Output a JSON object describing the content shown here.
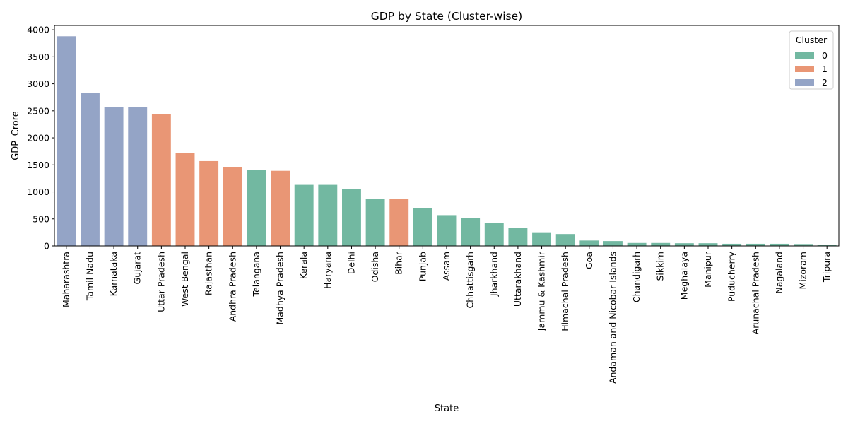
{
  "chart_data": {
    "type": "bar",
    "title": "GDP by State (Cluster-wise)",
    "xlabel": "State",
    "ylabel": "GDP_Crore",
    "ylim": [
      0,
      4080
    ],
    "yticks": [
      0,
      500,
      1000,
      1500,
      2000,
      2500,
      3000,
      3500,
      4000
    ],
    "grid": false,
    "legend": {
      "title": "Cluster",
      "position": "top-right",
      "entries": [
        {
          "label": "0",
          "color": "#72b8a1"
        },
        {
          "label": "1",
          "color": "#e99675"
        },
        {
          "label": "2",
          "color": "#94a4c6"
        }
      ]
    },
    "categories": [
      "Maharashtra",
      "Tamil Nadu",
      "Karnataka",
      "Gujarat",
      "Uttar Pradesh",
      "West Bengal",
      "Rajasthan",
      "Andhra Pradesh",
      "Telangana",
      "Madhya Pradesh",
      "Kerala",
      "Haryana",
      "Delhi",
      "Odisha",
      "Bihar",
      "Punjab",
      "Assam",
      "Chhattisgarh",
      "Jharkhand",
      "Uttarakhand",
      "Jammu & Kashmir",
      "Himachal Pradesh",
      "Goa",
      "Andaman and Nicobar Islands",
      "Chandigarh",
      "Sikkim",
      "Meghalaya",
      "Manipur",
      "Puducherry",
      "Arunachal Pradesh",
      "Nagaland",
      "Mizoram",
      "Tripura"
    ],
    "values": [
      3880,
      2830,
      2570,
      2570,
      2440,
      1720,
      1570,
      1460,
      1400,
      1390,
      1130,
      1130,
      1050,
      870,
      870,
      700,
      570,
      510,
      430,
      340,
      240,
      220,
      100,
      90,
      55,
      55,
      50,
      50,
      40,
      40,
      40,
      35,
      25
    ],
    "clusters": [
      "2",
      "2",
      "2",
      "2",
      "1",
      "1",
      "1",
      "1",
      "0",
      "1",
      "0",
      "0",
      "0",
      "0",
      "1",
      "0",
      "0",
      "0",
      "0",
      "0",
      "0",
      "0",
      "0",
      "0",
      "0",
      "0",
      "0",
      "0",
      "0",
      "0",
      "0",
      "0",
      "0"
    ]
  }
}
